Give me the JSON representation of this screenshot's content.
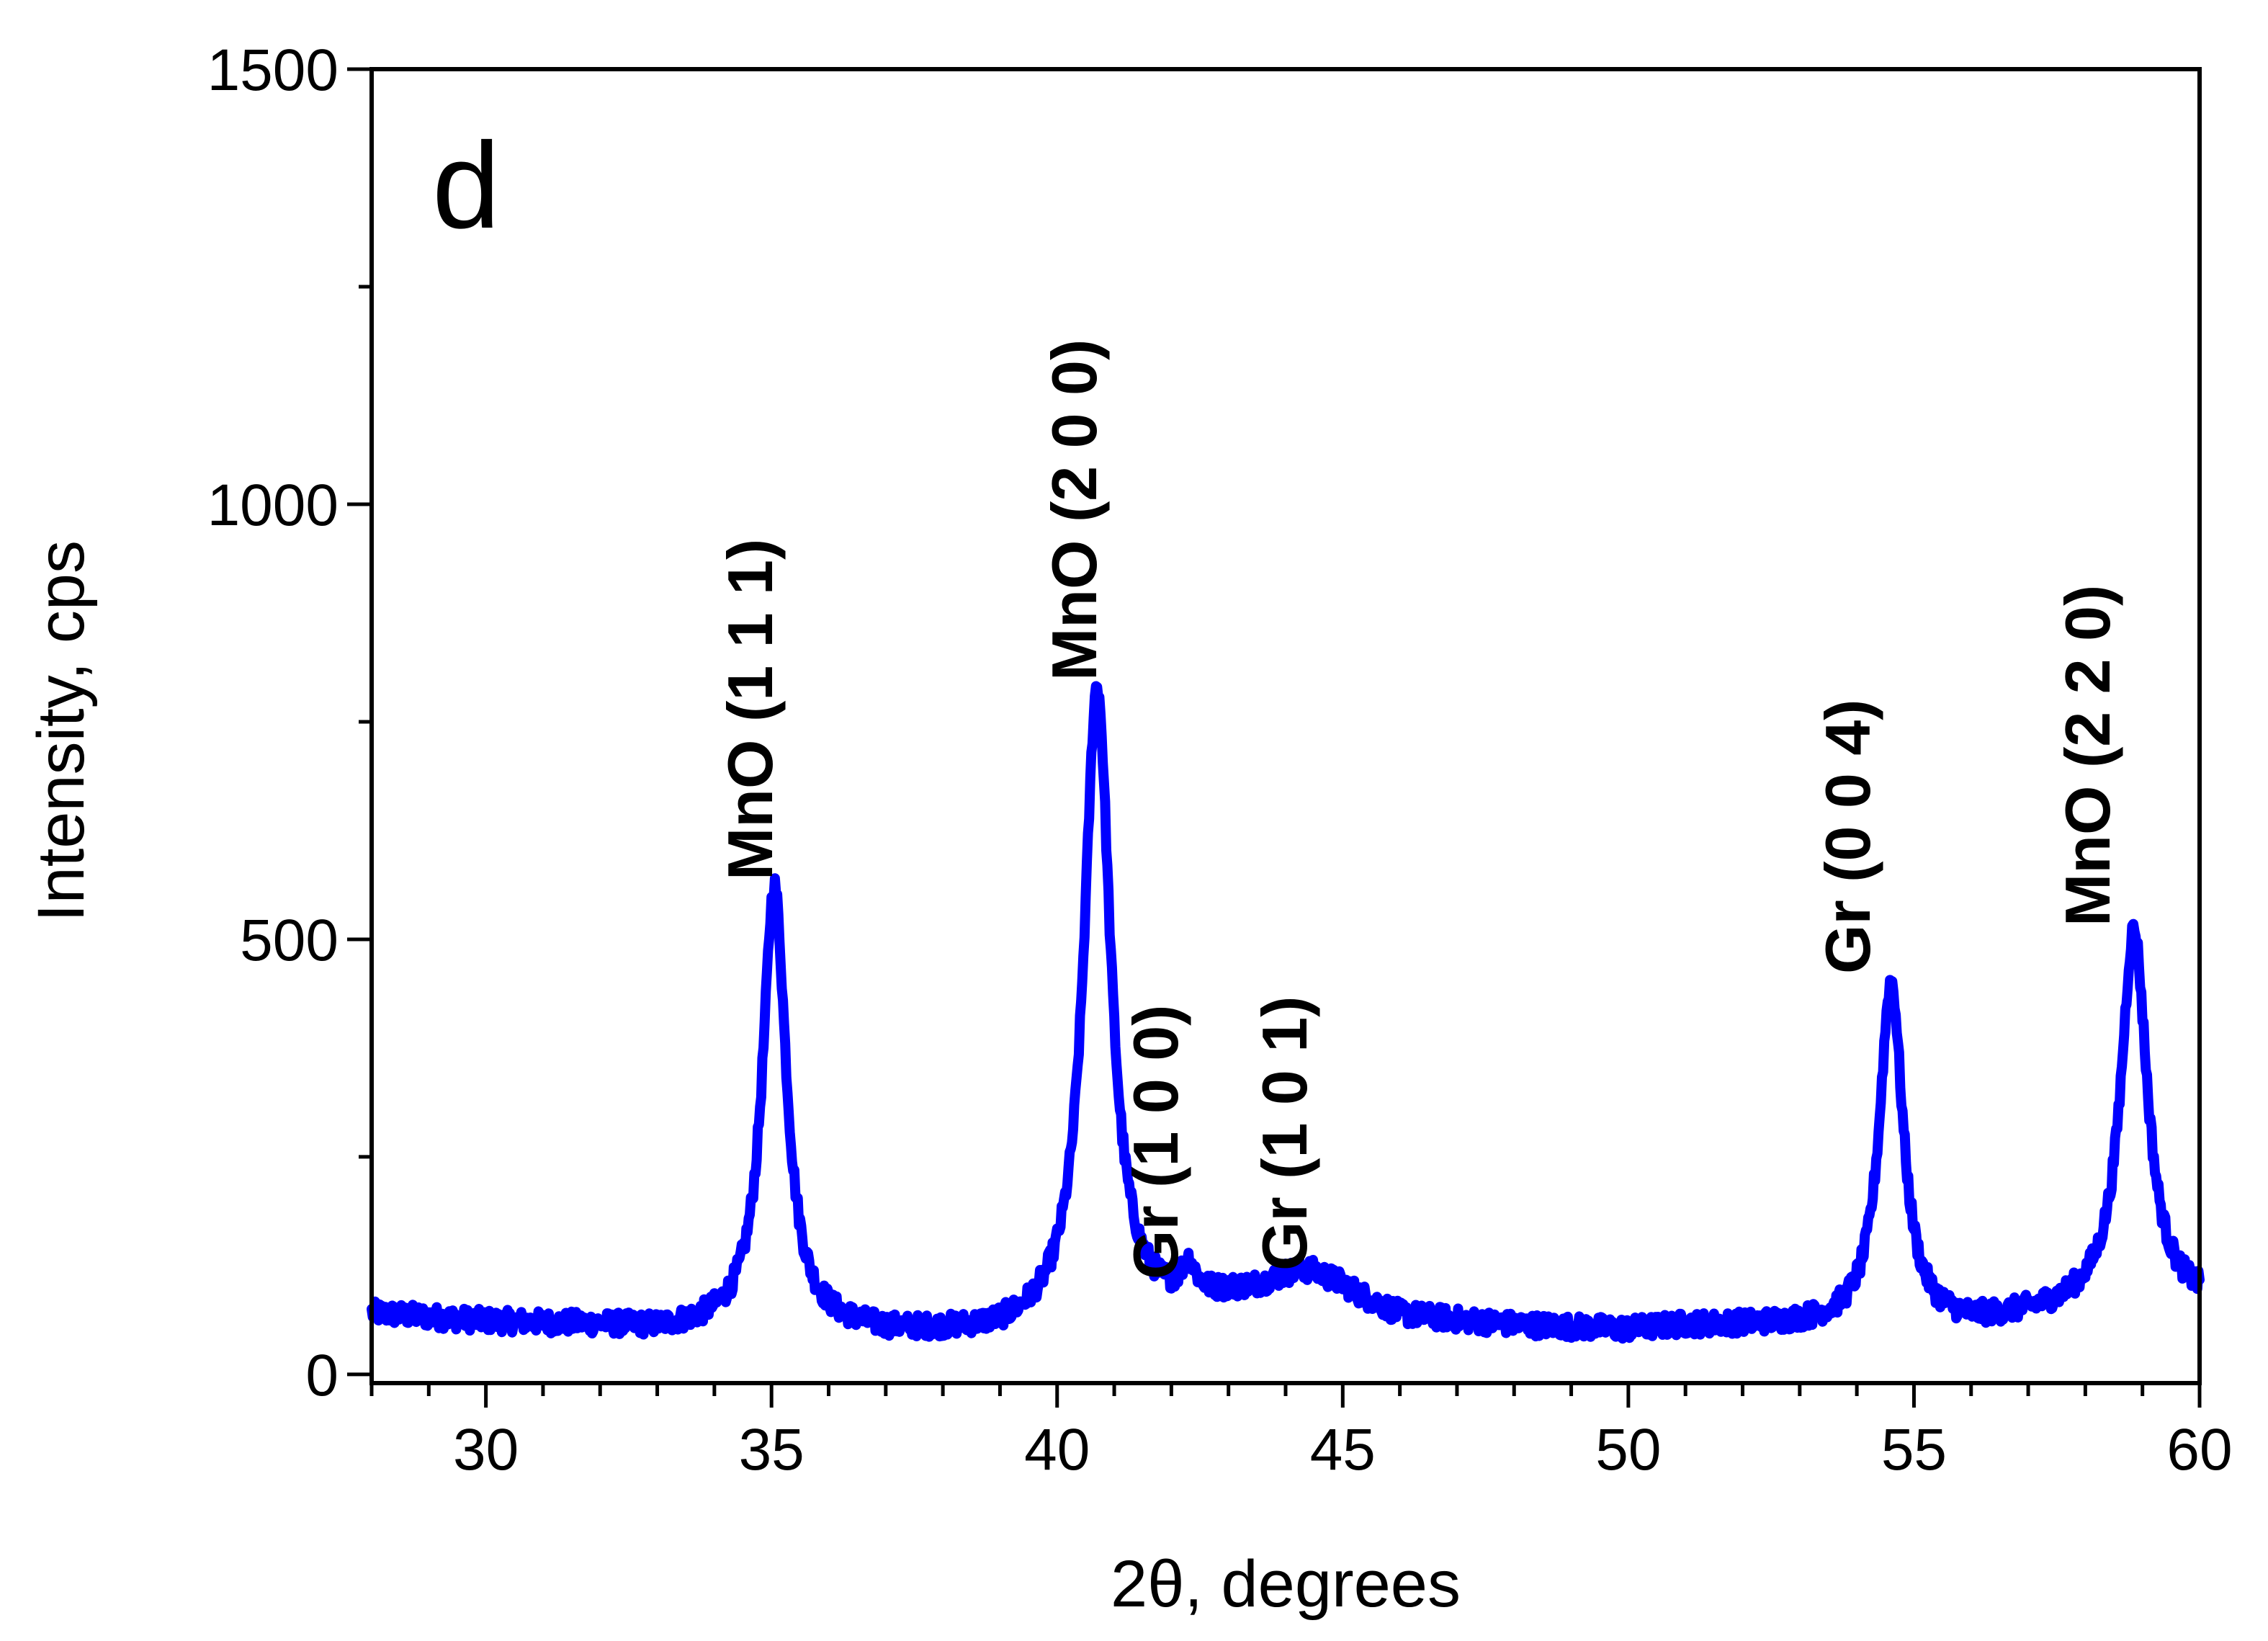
{
  "chart_data": {
    "type": "line",
    "panel_label": "d",
    "xlabel": "2θ, degrees",
    "ylabel": "Intensity, cps",
    "xlim": [
      28,
      60
    ],
    "ylim": [
      -10,
      1500
    ],
    "xticks": [
      30,
      35,
      40,
      45,
      50,
      55,
      60
    ],
    "yticks": [
      0,
      500,
      1000,
      1500
    ],
    "line_color": "#0000ff",
    "baseline_points": [
      [
        28,
        70
      ],
      [
        30,
        60
      ],
      [
        32,
        55
      ],
      [
        33,
        50
      ],
      [
        35,
        55
      ],
      [
        37,
        45
      ],
      [
        39,
        45
      ],
      [
        40,
        55
      ],
      [
        42,
        70
      ],
      [
        43,
        85
      ],
      [
        44,
        95
      ],
      [
        45,
        90
      ],
      [
        46,
        65
      ],
      [
        48,
        55
      ],
      [
        50,
        50
      ],
      [
        51,
        55
      ],
      [
        53,
        55
      ],
      [
        56,
        55
      ],
      [
        58,
        75
      ],
      [
        60,
        80
      ]
    ],
    "peaks": [
      {
        "label": "MnO (1 1 1)",
        "x": 35.05,
        "y": 560,
        "width": 0.25
      },
      {
        "label": "MnO (2 0 0)",
        "x": 40.7,
        "y": 790,
        "width": 0.28
      },
      {
        "label": "Gr (1 0 0)",
        "x": 42.3,
        "y": 110,
        "width": 0.15
      },
      {
        "label": "Gr (1 0 1)",
        "x": 44.4,
        "y": 115,
        "width": 0.6
      },
      {
        "label": "Gr (0 0 4)",
        "x": 54.6,
        "y": 450,
        "width": 0.25
      },
      {
        "label": "MnO (2 2 0)",
        "x": 58.85,
        "y": 510,
        "width": 0.28
      }
    ]
  }
}
